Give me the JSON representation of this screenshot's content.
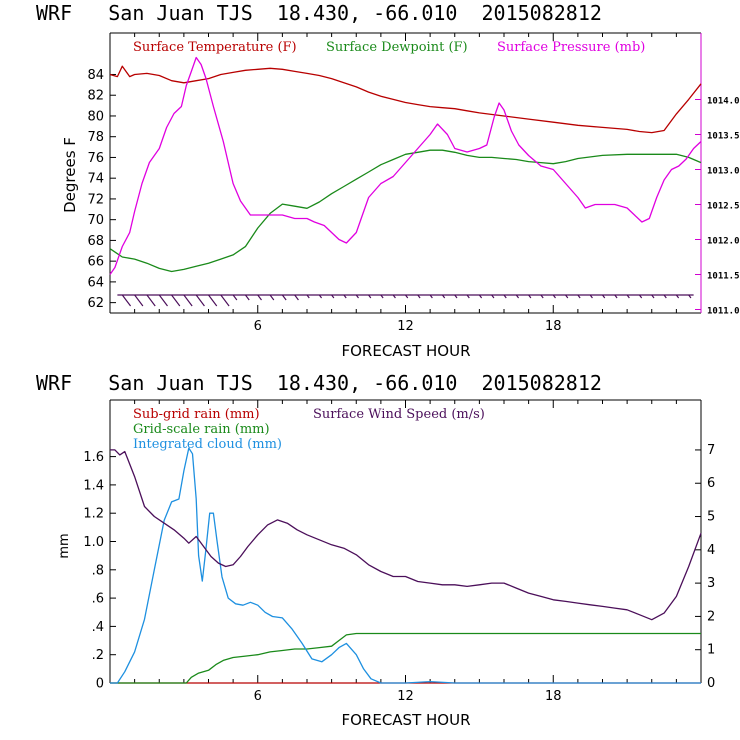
{
  "chart_data": [
    {
      "type": "line",
      "title": "WRF   San Juan TJS  18.430, -66.010  2015082812",
      "xlabel": "FORECAST HOUR",
      "ylabel": "Degrees F",
      "xlim": [
        0,
        24
      ],
      "ylim": [
        61,
        88
      ],
      "ylim_right": [
        1010.95,
        1014.95
      ],
      "xticks": [
        "6",
        "12",
        "18"
      ],
      "yticks": [
        "62",
        "64",
        "66",
        "68",
        "70",
        "72",
        "74",
        "76",
        "78",
        "80",
        "82",
        "84"
      ],
      "yticks_right": [
        "1011.0",
        "1011.5",
        "1012.0",
        "1012.5",
        "1013.0",
        "1013.5",
        "1014.0"
      ],
      "colors": {
        "temp": "#b80000",
        "dew": "#1a8a1a",
        "pres": "#e000e0",
        "wind": "#4b0f5a",
        "axis_left": "#000000",
        "axis_right": "#d000d0"
      },
      "series": [
        {
          "name": "Surface Temperature (F)",
          "axis": "left",
          "x": [
            0,
            0.3,
            0.5,
            0.8,
            1,
            1.5,
            2,
            2.5,
            3,
            3.5,
            4,
            4.5,
            5,
            5.5,
            6,
            6.5,
            7,
            7.5,
            8,
            8.5,
            9,
            9.5,
            10,
            10.5,
            11,
            11.5,
            12,
            12.5,
            13,
            13.5,
            14,
            14.5,
            15,
            16,
            17,
            18,
            19,
            20,
            21,
            21.5,
            22,
            22.5,
            23,
            23.5,
            24
          ],
          "values": [
            84,
            83.8,
            84.8,
            83.8,
            84,
            84.1,
            83.9,
            83.4,
            83.2,
            83.4,
            83.6,
            84,
            84.2,
            84.4,
            84.5,
            84.6,
            84.5,
            84.3,
            84.1,
            83.9,
            83.6,
            83.2,
            82.8,
            82.3,
            81.9,
            81.6,
            81.3,
            81.1,
            80.9,
            80.8,
            80.7,
            80.5,
            80.3,
            80,
            79.7,
            79.4,
            79.1,
            78.9,
            78.7,
            78.5,
            78.4,
            78.6,
            80.2,
            81.6,
            83.1
          ]
        },
        {
          "name": "Surface Dewpoint (F)",
          "axis": "left",
          "x": [
            0,
            0.5,
            1,
            1.5,
            2,
            2.5,
            3,
            3.5,
            4,
            4.5,
            5,
            5.5,
            6,
            6.5,
            7,
            7.5,
            8,
            8.5,
            9,
            9.5,
            10,
            10.5,
            11,
            11.5,
            12,
            12.5,
            13,
            13.5,
            14,
            14.5,
            15,
            15.5,
            16,
            16.5,
            17,
            17.5,
            18,
            18.5,
            19,
            20,
            21,
            22,
            22.5,
            23,
            23.5,
            24
          ],
          "values": [
            67.2,
            66.4,
            66.2,
            65.8,
            65.3,
            65,
            65.2,
            65.5,
            65.8,
            66.2,
            66.6,
            67.4,
            69.2,
            70.6,
            71.5,
            71.3,
            71.1,
            71.7,
            72.5,
            73.2,
            73.9,
            74.6,
            75.3,
            75.8,
            76.3,
            76.5,
            76.7,
            76.7,
            76.5,
            76.2,
            76,
            76,
            75.9,
            75.8,
            75.6,
            75.5,
            75.4,
            75.6,
            75.9,
            76.2,
            76.3,
            76.3,
            76.3,
            76.3,
            76,
            75.5
          ]
        },
        {
          "name": "Surface Pressure (mb)",
          "axis": "right",
          "x": [
            0,
            0.2,
            0.5,
            0.8,
            1,
            1.3,
            1.6,
            2,
            2.3,
            2.6,
            2.9,
            3.1,
            3.3,
            3.5,
            3.7,
            3.9,
            4.2,
            4.6,
            5,
            5.3,
            5.7,
            6,
            6.5,
            7,
            7.5,
            8,
            8.3,
            8.7,
            9,
            9.3,
            9.6,
            10,
            10.2,
            10.5,
            11,
            11.5,
            12,
            12.5,
            13,
            13.3,
            13.7,
            14,
            14.5,
            15,
            15.3,
            15.6,
            15.8,
            16,
            16.3,
            16.6,
            17,
            17.5,
            18,
            18.5,
            19,
            19.3,
            19.7,
            20,
            20.5,
            21,
            21.3,
            21.6,
            21.9,
            22.2,
            22.5,
            22.8,
            23.1,
            23.4,
            23.7,
            24
          ],
          "values": [
            1011.5,
            1011.6,
            1011.9,
            1012.1,
            1012.4,
            1012.8,
            1013.1,
            1013.3,
            1013.6,
            1013.8,
            1013.9,
            1014.2,
            1014.4,
            1014.6,
            1014.5,
            1014.3,
            1013.9,
            1013.4,
            1012.8,
            1012.55,
            1012.35,
            1012.35,
            1012.35,
            1012.35,
            1012.3,
            1012.3,
            1012.25,
            1012.2,
            1012.1,
            1012,
            1011.95,
            1012.1,
            1012.3,
            1012.6,
            1012.8,
            1012.9,
            1013.1,
            1013.3,
            1013.5,
            1013.65,
            1013.5,
            1013.3,
            1013.25,
            1013.3,
            1013.35,
            1013.75,
            1013.95,
            1013.85,
            1013.55,
            1013.35,
            1013.2,
            1013.05,
            1013.0,
            1012.8,
            1012.6,
            1012.45,
            1012.5,
            1012.5,
            1012.5,
            1012.45,
            1012.35,
            1012.25,
            1012.3,
            1012.6,
            1012.85,
            1013.0,
            1013.05,
            1013.15,
            1013.3,
            1013.4
          ]
        }
      ],
      "legend": "top",
      "grid": false
    },
    {
      "type": "line",
      "title": "WRF   San Juan TJS  18.430, -66.010  2015082812",
      "xlabel": "FORECAST HOUR",
      "ylabel": "mm",
      "xlim": [
        0,
        24
      ],
      "ylim": [
        0,
        2.0
      ],
      "ylim_right": [
        0,
        8.5
      ],
      "xticks": [
        "6",
        "12",
        "18"
      ],
      "yticks": [
        "0",
        ".2",
        ".4",
        ".6",
        ".8",
        "1.0",
        "1.2",
        "1.4",
        "1.6"
      ],
      "yticks_right": [
        "0",
        "1",
        "2",
        "3",
        "4",
        "5",
        "6",
        "7"
      ],
      "colors": {
        "subgrid": "#b80000",
        "gridscale": "#1a8a1a",
        "cloud": "#1e90e0",
        "wind": "#4b0f5a"
      },
      "series": [
        {
          "name": "Sub-grid rain (mm)",
          "axis": "left",
          "x": [
            0,
            24
          ],
          "values": [
            0,
            0
          ]
        },
        {
          "name": "Grid-scale rain (mm)",
          "axis": "left",
          "x": [
            0,
            3.1,
            3.3,
            3.6,
            4,
            4.3,
            4.6,
            5,
            5.5,
            6,
            6.5,
            7,
            7.5,
            8,
            8.5,
            9,
            9.3,
            9.6,
            10,
            11,
            12,
            13,
            14,
            16,
            18,
            20,
            22,
            24
          ],
          "values": [
            0,
            0,
            0.04,
            0.07,
            0.09,
            0.13,
            0.16,
            0.18,
            0.19,
            0.2,
            0.22,
            0.23,
            0.24,
            0.24,
            0.25,
            0.26,
            0.3,
            0.34,
            0.35,
            0.35,
            0.35,
            0.35,
            0.35,
            0.35,
            0.35,
            0.35,
            0.35,
            0.35
          ]
        },
        {
          "name": "Integrated cloud (mm)",
          "axis": "left",
          "x": [
            0,
            0.3,
            0.6,
            1,
            1.4,
            1.8,
            2.2,
            2.5,
            2.8,
            3.0,
            3.2,
            3.35,
            3.5,
            3.6,
            3.75,
            3.9,
            4.05,
            4.2,
            4.35,
            4.55,
            4.8,
            5.1,
            5.4,
            5.7,
            6,
            6.3,
            6.6,
            7,
            7.4,
            7.8,
            8.2,
            8.6,
            9,
            9.3,
            9.6,
            10,
            10.3,
            10.6,
            11,
            12,
            13,
            14,
            18,
            24
          ],
          "values": [
            0,
            0,
            0.08,
            0.22,
            0.45,
            0.8,
            1.15,
            1.28,
            1.3,
            1.5,
            1.66,
            1.62,
            1.3,
            0.9,
            0.72,
            0.95,
            1.2,
            1.2,
            1.0,
            0.75,
            0.6,
            0.56,
            0.55,
            0.57,
            0.55,
            0.5,
            0.47,
            0.46,
            0.38,
            0.28,
            0.17,
            0.15,
            0.2,
            0.25,
            0.28,
            0.2,
            0.1,
            0.03,
            0,
            0,
            0.01,
            0,
            0,
            0
          ]
        },
        {
          "name": "Surface Wind Speed (m/s)",
          "axis": "right",
          "x": [
            0,
            0.2,
            0.4,
            0.6,
            1,
            1.4,
            1.8,
            2.2,
            2.6,
            3.0,
            3.2,
            3.5,
            3.8,
            4.1,
            4.4,
            4.7,
            5,
            5.3,
            5.6,
            6,
            6.4,
            6.8,
            7.2,
            7.6,
            8,
            8.5,
            9,
            9.5,
            10,
            10.5,
            11,
            11.5,
            12,
            12.5,
            13,
            13.5,
            14,
            14.5,
            15,
            15.5,
            16,
            16.5,
            17,
            17.5,
            18,
            18.5,
            19,
            19.5,
            20,
            20.5,
            21,
            21.5,
            22,
            22.5,
            23,
            23.5,
            24
          ],
          "values": [
            7.0,
            7.0,
            6.85,
            6.95,
            6.2,
            5.3,
            5.0,
            4.8,
            4.6,
            4.35,
            4.2,
            4.4,
            4.1,
            3.8,
            3.6,
            3.5,
            3.55,
            3.8,
            4.1,
            4.45,
            4.75,
            4.9,
            4.8,
            4.6,
            4.45,
            4.3,
            4.15,
            4.05,
            3.85,
            3.55,
            3.35,
            3.2,
            3.2,
            3.05,
            3.0,
            2.95,
            2.95,
            2.9,
            2.95,
            3.0,
            3.0,
            2.85,
            2.7,
            2.6,
            2.5,
            2.45,
            2.4,
            2.35,
            2.3,
            2.25,
            2.2,
            2.05,
            1.9,
            2.1,
            2.6,
            3.5,
            4.5
          ]
        }
      ],
      "legend": "top-left",
      "grid": false
    }
  ]
}
